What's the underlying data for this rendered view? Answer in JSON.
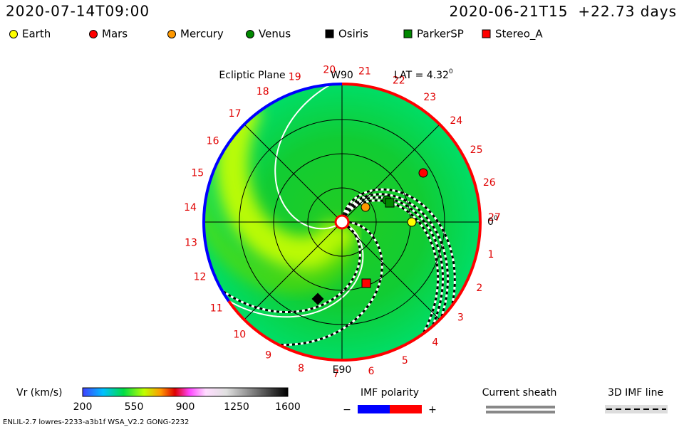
{
  "header": {
    "run_time": "2020-07-14T09:00",
    "ref_time": "2020-06-21T15",
    "offset": "+22.73 days"
  },
  "legend": [
    {
      "name": "Earth",
      "color": "#ffff00",
      "shape": "circle"
    },
    {
      "name": "Mars",
      "color": "#ff0000",
      "shape": "circle"
    },
    {
      "name": "Mercury",
      "color": "#ff9900",
      "shape": "circle"
    },
    {
      "name": "Venus",
      "color": "#008800",
      "shape": "circle"
    },
    {
      "name": "Osiris",
      "color": "#000000",
      "shape": "square"
    },
    {
      "name": "ParkerSP",
      "color": "#008800",
      "shape": "square"
    },
    {
      "name": "Stereo_A",
      "color": "#ff0000",
      "shape": "square"
    }
  ],
  "plot": {
    "title": "Ecliptic Plane",
    "top_label": "W90",
    "bottom_label": "E90",
    "lat_label": "LAT = 4.32",
    "lat_degree": "0",
    "angle_label": "0",
    "angle_degree": "0",
    "rim_labels": [
      "1",
      "2",
      "3",
      "4",
      "5",
      "6",
      "7",
      "8",
      "9",
      "10",
      "11",
      "12",
      "13",
      "14",
      "15",
      "16",
      "17",
      "18",
      "19",
      "20",
      "21",
      "22",
      "23",
      "24",
      "25",
      "26",
      "27"
    ]
  },
  "colorbar": {
    "label": "Vr (km/s)",
    "ticks": [
      "200",
      "550",
      "900",
      "1250",
      "1600"
    ]
  },
  "imf": {
    "title": "IMF polarity",
    "minus": "−",
    "plus": "+"
  },
  "sheath": {
    "title": "Current sheath"
  },
  "imf_line": {
    "title": "3D IMF line"
  },
  "footer": "ENLIL-2.7 lowres-2233-a3b1f WSA_V2.2 GONG-2232"
}
